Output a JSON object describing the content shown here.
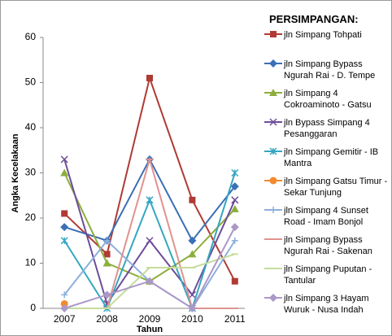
{
  "chart_data": {
    "type": "line",
    "legend_title": "PERSIMPANGAN:",
    "x_label": "Tahun",
    "y_label": "Angka Kecelakaan",
    "categories": [
      "2007",
      "2008",
      "2009",
      "2010",
      "2011"
    ],
    "ylim": [
      0,
      60
    ],
    "yticks": [
      0,
      10,
      20,
      30,
      40,
      50,
      60
    ],
    "legend": "right",
    "series": [
      {
        "name": "jln Simpang Tohpati",
        "color": "#b03a34",
        "marker": "square",
        "values": [
          21,
          12,
          51,
          24,
          6
        ]
      },
      {
        "name": "jln Simpang Bypass Ngurah Rai - D. Tempe",
        "color": "#3b6fb6",
        "marker": "diamond",
        "values": [
          18,
          15,
          33,
          15,
          27
        ]
      },
      {
        "name": "jln Simpang 4 Cokroaminoto - Gatsu",
        "color": "#8cae3c",
        "marker": "triangle",
        "values": [
          30,
          10,
          6,
          12,
          22
        ]
      },
      {
        "name": "jln Bypass Simpang 4 Pesanggaran",
        "color": "#6e4c99",
        "marker": "x",
        "values": [
          33,
          1,
          15,
          3,
          24
        ]
      },
      {
        "name": "jln Simpang Gemitir - IB Mantra",
        "color": "#35a6c0",
        "marker": "star",
        "values": [
          15,
          0,
          24,
          0,
          30
        ]
      },
      {
        "name": "jln Simpang Gatsu Timur - Sekar Tunjung",
        "color": "#f28a2e",
        "marker": "circle",
        "values": [
          1,
          null,
          null,
          null,
          null
        ]
      },
      {
        "name": "jln Simpang 4 Sunset Road - Imam Bonjol",
        "color": "#8cb0dc",
        "marker": "plus",
        "values": [
          3,
          15,
          6,
          0,
          15
        ]
      },
      {
        "name": "jln Simpang Bypass Ngurah Rai - Sakenan",
        "color": "#e0928f",
        "marker": "dash",
        "values": [
          0,
          0,
          33,
          0,
          0
        ]
      },
      {
        "name": "jln Simpang Puputan - Tantular",
        "color": "#c6dc9c",
        "marker": "dash",
        "values": [
          0,
          0,
          9,
          9,
          12
        ]
      },
      {
        "name": "jln Simpang 3 Hayam Wuruk - Nusa Indah",
        "color": "#ab98c8",
        "marker": "diamond",
        "values": [
          0,
          3,
          6,
          0,
          18
        ]
      }
    ]
  }
}
